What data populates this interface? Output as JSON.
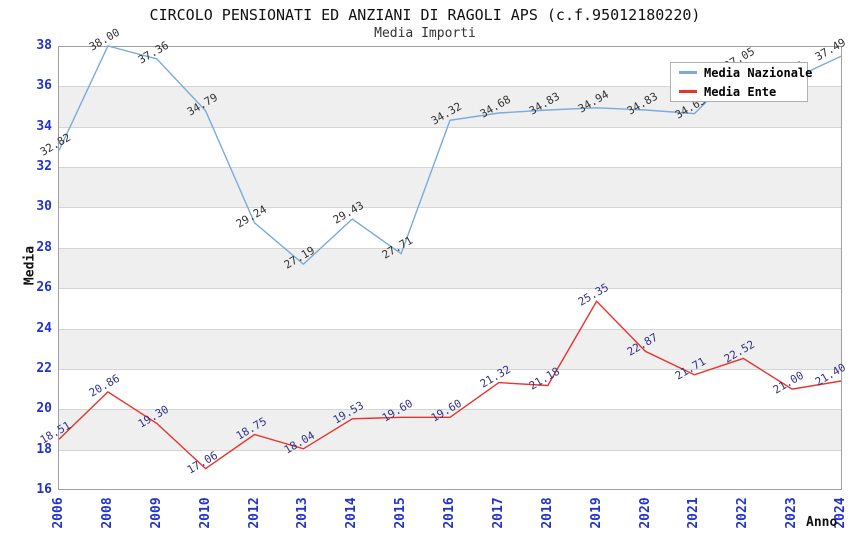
{
  "title": "CIRCOLO PENSIONATI ED ANZIANI DI RAGOLI APS (c.f.95012180220)",
  "subtitle": "Media Importi",
  "y_axis_title": "Media",
  "x_axis_title": "Anno",
  "colors": {
    "tick_label": "#2233cc",
    "band_gray": "#efefef",
    "gridline": "#d4d4d4",
    "plot_border": "#a0a0a0",
    "national_line": "#7aabdc",
    "entity_line": "#e8332a",
    "national_point_label": "#333333",
    "entity_point_label": "#333388"
  },
  "chart_data": {
    "type": "line",
    "title": "CIRCOLO PENSIONATI ED ANZIANI DI RAGOLI APS (c.f.95012180220)",
    "subtitle": "Media Importi",
    "xlabel": "Anno",
    "ylabel": "Media",
    "x": [
      "2006",
      "2008",
      "2009",
      "2010",
      "2012",
      "2013",
      "2014",
      "2015",
      "2016",
      "2017",
      "2018",
      "2019",
      "2020",
      "2021",
      "2022",
      "2023",
      "2024"
    ],
    "ylim": [
      16,
      38
    ],
    "ytick_step": 2,
    "grid": "horizontal",
    "band_fill": "alternating-gray",
    "legend_position": "top-right-inside",
    "series": [
      {
        "name": "Media Nazionale",
        "color": "#7aabdc",
        "label_color": "#333333",
        "values": [
          32.82,
          38.0,
          37.36,
          34.79,
          29.24,
          27.19,
          29.43,
          27.71,
          34.32,
          34.68,
          34.83,
          34.94,
          34.83,
          34.65,
          37.05,
          36.36,
          37.49
        ],
        "point_labels": [
          "32.82",
          "38.00",
          "37.36",
          "34.79",
          "29.24",
          "27.19",
          "29.43",
          "27.71",
          "34.32",
          "34.68",
          "34.83",
          "34.94",
          "34.83",
          "34.65",
          "37.05",
          "36.36",
          "37.49"
        ]
      },
      {
        "name": "Media Ente",
        "color": "#e8332a",
        "label_color": "#333388",
        "values": [
          18.51,
          20.86,
          19.3,
          17.06,
          18.75,
          18.04,
          19.53,
          19.6,
          19.6,
          21.32,
          21.18,
          25.35,
          22.87,
          21.71,
          22.52,
          21.0,
          21.4
        ],
        "point_labels": [
          "18.51",
          "20.86",
          "19.30",
          "17.06",
          "18.75",
          "18.04",
          "19.53",
          "19.60",
          "19.60",
          "21.32",
          "21.18",
          "25.35",
          "22.87",
          "21.71",
          "22.52",
          "21.00",
          "21.40"
        ]
      }
    ]
  }
}
